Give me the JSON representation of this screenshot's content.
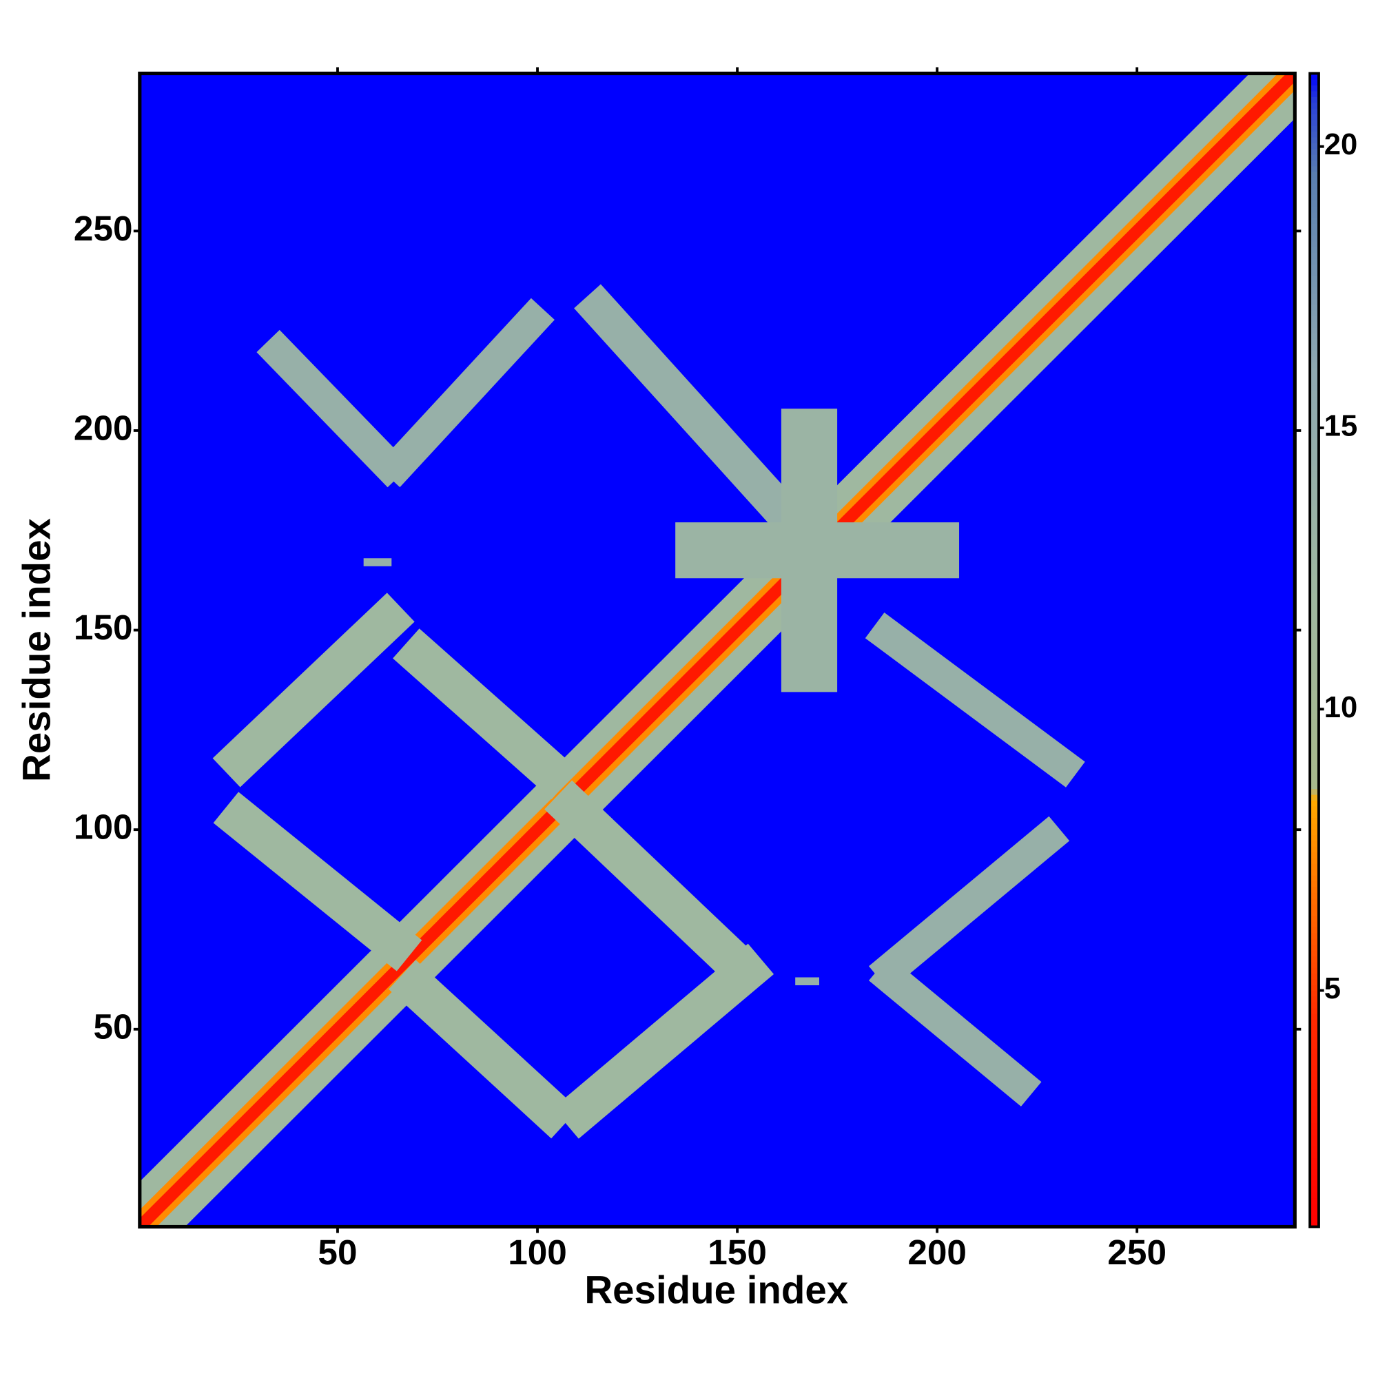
{
  "chart_data": {
    "type": "heatmap",
    "x_label": "Residue index",
    "y_label": "Residue index",
    "xlim": [
      0.5,
      289.5
    ],
    "ylim": [
      0.5,
      289.5
    ],
    "xticks": [
      50,
      100,
      150,
      200,
      250
    ],
    "yticks": [
      50,
      100,
      150,
      200,
      250
    ],
    "clim": [
      0.8,
      21.3
    ],
    "cticks": [
      5,
      10,
      15,
      20
    ],
    "colorscale": [
      [
        0.8,
        "#ff0000"
      ],
      [
        4.5,
        "#ff2a00"
      ],
      [
        7,
        "#ff7a00"
      ],
      [
        8.4,
        "#ffaa00"
      ],
      [
        8.6,
        "#a8b98c"
      ],
      [
        12,
        "#9fb8a0"
      ],
      [
        16,
        "#8fa8b0"
      ],
      [
        19.5,
        "#5a7fb0"
      ],
      [
        20.8,
        "#2a40d8"
      ],
      [
        21.3,
        "#0000ff"
      ]
    ],
    "background_value": 21.3,
    "bands": [
      {
        "from": [
          1,
          1
        ],
        "to": [
          289,
          289
        ],
        "width": 16,
        "value": 12
      },
      {
        "from": [
          1,
          1
        ],
        "to": [
          289,
          289
        ],
        "width": 6,
        "value": 7.5
      },
      {
        "from": [
          1,
          1
        ],
        "to": [
          289,
          289
        ],
        "width": 3,
        "value": 3
      },
      {
        "from": [
          24,
          116
        ],
        "to": [
          64,
          154
        ],
        "width": 10,
        "value": 12
      },
      {
        "from": [
          69,
          145
        ],
        "to": [
          105,
          113
        ],
        "width": 10,
        "value": 12
      },
      {
        "from": [
          24,
          104
        ],
        "to": [
          66,
          70
        ],
        "width": 10,
        "value": 12
      },
      {
        "from": [
          68,
          62
        ],
        "to": [
          105,
          28
        ],
        "width": 10,
        "value": 12
      },
      {
        "from": [
          109,
          28
        ],
        "to": [
          154,
          66
        ],
        "width": 10,
        "value": 12
      },
      {
        "from": [
          107,
          107
        ],
        "to": [
          148,
          68
        ],
        "width": 10,
        "value": 12
      },
      {
        "from": [
          34,
          221
        ],
        "to": [
          64,
          190
        ],
        "width": 8,
        "value": 14
      },
      {
        "from": [
          64,
          190
        ],
        "to": [
          100,
          229
        ],
        "width": 8,
        "value": 14
      },
      {
        "from": [
          114,
          232
        ],
        "to": [
          170,
          170
        ],
        "width": 9,
        "value": 14
      },
      {
        "from": [
          138,
          170
        ],
        "to": [
          202,
          170
        ],
        "width": 14,
        "value": 13
      },
      {
        "from": [
          168,
          138
        ],
        "to": [
          168,
          202
        ],
        "width": 14,
        "value": 13
      },
      {
        "from": [
          186,
          150
        ],
        "to": [
          233,
          115
        ],
        "width": 8,
        "value": 14
      },
      {
        "from": [
          187,
          64
        ],
        "to": [
          229,
          99
        ],
        "width": 8,
        "value": 14
      },
      {
        "from": [
          187,
          64
        ],
        "to": [
          222,
          35
        ],
        "width": 8,
        "value": 14
      },
      {
        "from": [
          57,
          167
        ],
        "to": [
          63,
          167
        ],
        "width": 2,
        "value": 14
      },
      {
        "from": [
          165,
          62
        ],
        "to": [
          170,
          62
        ],
        "width": 2,
        "value": 14
      }
    ]
  }
}
